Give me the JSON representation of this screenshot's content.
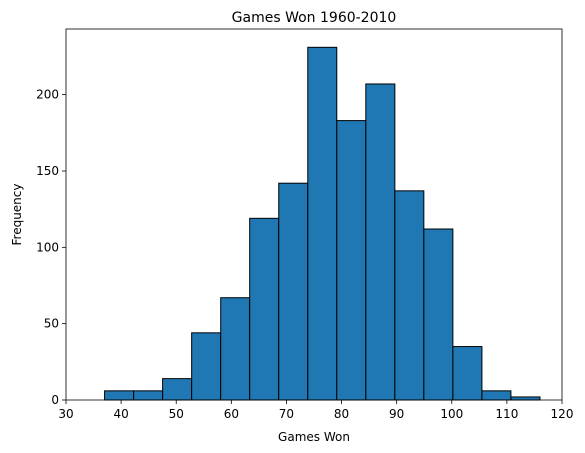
{
  "chart_data": {
    "type": "bar",
    "title": "Games Won 1960-2010",
    "xlabel": "Games Won",
    "ylabel": "Frequency",
    "xlim": [
      30,
      120
    ],
    "ylim": [
      0,
      243
    ],
    "xticks": [
      30,
      40,
      50,
      60,
      70,
      80,
      90,
      100,
      110,
      120
    ],
    "yticks": [
      0,
      50,
      100,
      150,
      200
    ],
    "grid": false,
    "bar_color": "#1f77b4",
    "edge_color": "#000000",
    "bins": [
      {
        "start": 37.0,
        "end": 42.27,
        "count": 6
      },
      {
        "start": 42.27,
        "end": 47.53,
        "count": 6
      },
      {
        "start": 47.53,
        "end": 52.8,
        "count": 14
      },
      {
        "start": 52.8,
        "end": 58.07,
        "count": 44
      },
      {
        "start": 58.07,
        "end": 63.33,
        "count": 67
      },
      {
        "start": 63.33,
        "end": 68.6,
        "count": 119
      },
      {
        "start": 68.6,
        "end": 73.87,
        "count": 142
      },
      {
        "start": 73.87,
        "end": 79.13,
        "count": 231
      },
      {
        "start": 79.13,
        "end": 84.4,
        "count": 183
      },
      {
        "start": 84.4,
        "end": 89.67,
        "count": 207
      },
      {
        "start": 89.67,
        "end": 94.93,
        "count": 137
      },
      {
        "start": 94.93,
        "end": 100.2,
        "count": 112
      },
      {
        "start": 100.2,
        "end": 105.47,
        "count": 35
      },
      {
        "start": 105.47,
        "end": 110.73,
        "count": 6
      },
      {
        "start": 110.73,
        "end": 116.0,
        "count": 2
      }
    ]
  }
}
